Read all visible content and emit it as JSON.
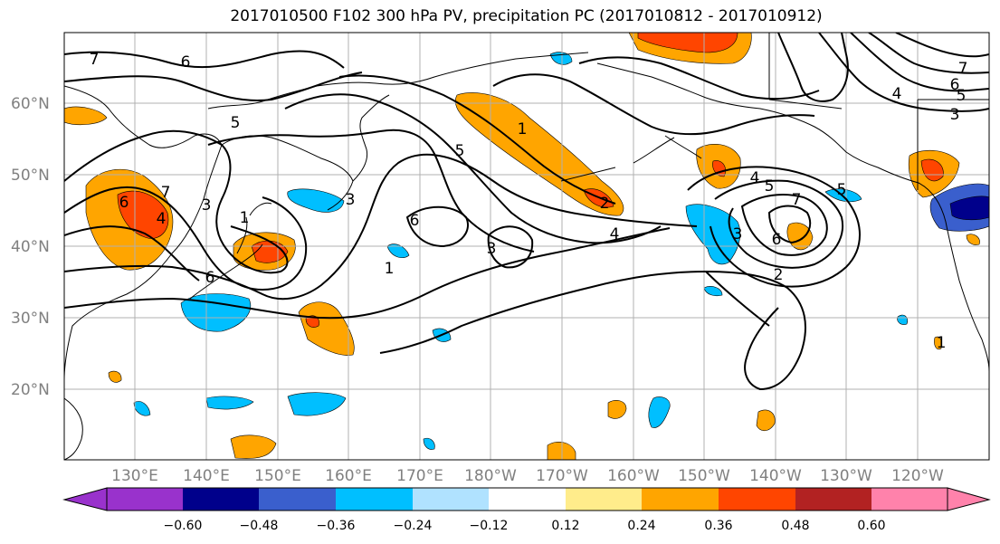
{
  "title": "2017010500 F102 300 hPa PV, precipitation PC (2017010812 - 2017010912)",
  "lat_labels": [
    "60°N",
    "50°N",
    "40°N",
    "30°N",
    "20°N"
  ],
  "lon_labels": [
    "130°E",
    "140°E",
    "150°E",
    "160°E",
    "170°E",
    "180°W",
    "170°W",
    "160°W",
    "150°W",
    "140°W",
    "130°W",
    "120°W"
  ],
  "colorbar": {
    "ticks": [
      "−0.60",
      "−0.48",
      "−0.36",
      "−0.24",
      "−0.12",
      "0.12",
      "0.24",
      "0.36",
      "0.48",
      "0.60"
    ],
    "colors": [
      "#9932cc",
      "#00008b",
      "#3a5fcd",
      "#00bfff",
      "#b0e2ff",
      "#ffffff",
      "#ffec8b",
      "#ffa500",
      "#ff4500",
      "#b22222",
      "#ff82ab"
    ]
  },
  "contour_labels": [
    "7",
    "6",
    "5",
    "1",
    "3",
    "6",
    "7",
    "4",
    "3",
    "6",
    "5",
    "1",
    "3",
    "6",
    "1",
    "4",
    "2",
    "5",
    "7",
    "4",
    "5",
    "3",
    "6",
    "2",
    "4",
    "7",
    "6",
    "5",
    "3",
    "1"
  ],
  "colors": {
    "pos1": "#ffec8b",
    "pos2": "#ffa500",
    "pos3": "#ff4500",
    "pos4": "#b22222",
    "neg1": "#b0e2ff",
    "neg2": "#00bfff",
    "neg3": "#3a5fcd",
    "neg4": "#00008b"
  }
}
